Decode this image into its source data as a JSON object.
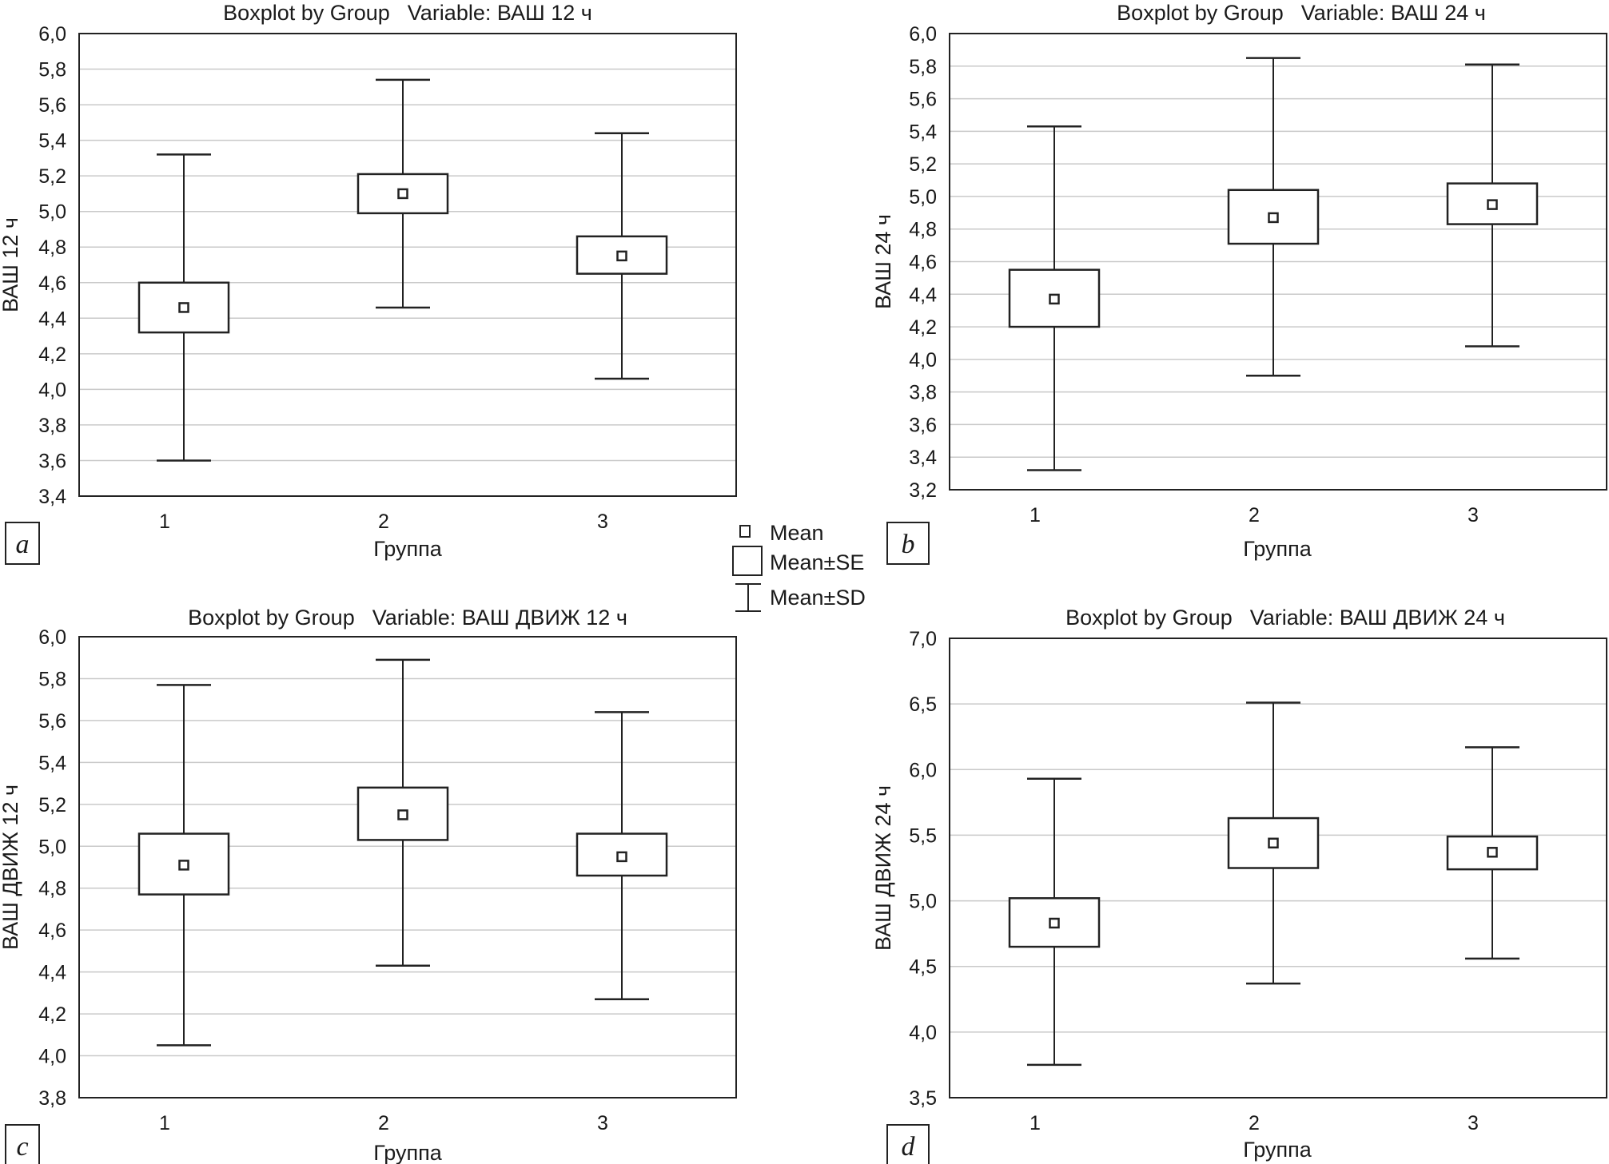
{
  "legend": {
    "items": [
      {
        "key": "mean",
        "label": "Mean"
      },
      {
        "key": "se",
        "label": "Mean±SE"
      },
      {
        "key": "sd",
        "label": "Mean±SD"
      }
    ]
  },
  "chart_data": [
    {
      "type": "boxplot",
      "panel": "a",
      "title_prefix": "Boxplot by Group",
      "title_variable": "Variable: ВАШ 12 ч",
      "xlabel": "Группа",
      "ylabel": "ВАШ 12 ч",
      "categories": [
        "1",
        "2",
        "3"
      ],
      "ylim": [
        3.4,
        6.0
      ],
      "yticks": [
        3.4,
        3.6,
        3.8,
        4.0,
        4.2,
        4.4,
        4.6,
        4.8,
        5.0,
        5.2,
        5.4,
        5.6,
        5.8,
        6.0
      ],
      "ytick_labels": [
        "3,4",
        "3,6",
        "3,8",
        "4,0",
        "4,2",
        "4,4",
        "4,6",
        "4,8",
        "5,0",
        "5,2",
        "5,4",
        "5,6",
        "5,8",
        "6,0"
      ],
      "groups": [
        {
          "mean": 4.46,
          "se_low": 4.32,
          "se_high": 4.6,
          "sd_low": 3.6,
          "sd_high": 5.32
        },
        {
          "mean": 5.1,
          "se_low": 4.99,
          "se_high": 5.21,
          "sd_low": 4.46,
          "sd_high": 5.74
        },
        {
          "mean": 4.75,
          "se_low": 4.65,
          "se_high": 4.86,
          "sd_low": 4.06,
          "sd_high": 5.44
        }
      ]
    },
    {
      "type": "boxplot",
      "panel": "b",
      "title_prefix": "Boxplot by Group",
      "title_variable": "Variable: ВАШ 24 ч",
      "xlabel": "Группа",
      "ylabel": "ВАШ 24 ч",
      "categories": [
        "1",
        "2",
        "3"
      ],
      "ylim": [
        3.2,
        6.0
      ],
      "yticks": [
        3.2,
        3.4,
        3.6,
        3.8,
        4.0,
        4.2,
        4.4,
        4.6,
        4.8,
        5.0,
        5.2,
        5.4,
        5.6,
        5.8,
        6.0
      ],
      "ytick_labels": [
        "3,2",
        "3,4",
        "3,6",
        "3,8",
        "4,0",
        "4,2",
        "4,4",
        "4,6",
        "4,8",
        "5,0",
        "5,2",
        "5,4",
        "5,6",
        "5,8",
        "6,0"
      ],
      "groups": [
        {
          "mean": 4.37,
          "se_low": 4.2,
          "se_high": 4.55,
          "sd_low": 3.32,
          "sd_high": 5.43
        },
        {
          "mean": 4.87,
          "se_low": 4.71,
          "se_high": 5.04,
          "sd_low": 3.9,
          "sd_high": 5.85
        },
        {
          "mean": 4.95,
          "se_low": 4.83,
          "se_high": 5.08,
          "sd_low": 4.08,
          "sd_high": 5.81
        }
      ]
    },
    {
      "type": "boxplot",
      "panel": "c",
      "title_prefix": "Boxplot by Group",
      "title_variable": "Variable: ВАШ ДВИЖ 12 ч",
      "xlabel": "Группа",
      "ylabel": "ВАШ ДВИЖ 12 ч",
      "categories": [
        "1",
        "2",
        "3"
      ],
      "ylim": [
        3.8,
        6.0
      ],
      "yticks": [
        3.8,
        4.0,
        4.2,
        4.4,
        4.6,
        4.8,
        5.0,
        5.2,
        5.4,
        5.6,
        5.8,
        6.0
      ],
      "ytick_labels": [
        "3,8",
        "4,0",
        "4,2",
        "4,4",
        "4,6",
        "4,8",
        "5,0",
        "5,2",
        "5,4",
        "5,6",
        "5,8",
        "6,0"
      ],
      "groups": [
        {
          "mean": 4.91,
          "se_low": 4.77,
          "se_high": 5.06,
          "sd_low": 4.05,
          "sd_high": 5.77
        },
        {
          "mean": 5.15,
          "se_low": 5.03,
          "se_high": 5.28,
          "sd_low": 4.43,
          "sd_high": 5.89
        },
        {
          "mean": 4.95,
          "se_low": 4.86,
          "se_high": 5.06,
          "sd_low": 4.27,
          "sd_high": 5.64
        }
      ]
    },
    {
      "type": "boxplot",
      "panel": "d",
      "title_prefix": "Boxplot by Group",
      "title_variable": "Variable: ВАШ ДВИЖ 24 ч",
      "xlabel": "Группа",
      "ylabel": "ВАШ ДВИЖ 24 ч",
      "categories": [
        "1",
        "2",
        "3"
      ],
      "ylim": [
        3.5,
        7.0
      ],
      "yticks": [
        3.5,
        4.0,
        4.5,
        5.0,
        5.5,
        6.0,
        6.5,
        7.0
      ],
      "ytick_labels": [
        "3,5",
        "4,0",
        "4,5",
        "5,0",
        "5,5",
        "6,0",
        "6,5",
        "7,0"
      ],
      "groups": [
        {
          "mean": 4.83,
          "se_low": 4.65,
          "se_high": 5.02,
          "sd_low": 3.75,
          "sd_high": 5.93
        },
        {
          "mean": 5.44,
          "se_low": 5.25,
          "se_high": 5.63,
          "sd_low": 4.37,
          "sd_high": 6.51
        },
        {
          "mean": 5.37,
          "se_low": 5.24,
          "se_high": 5.49,
          "sd_low": 4.56,
          "sd_high": 6.17
        }
      ]
    }
  ]
}
